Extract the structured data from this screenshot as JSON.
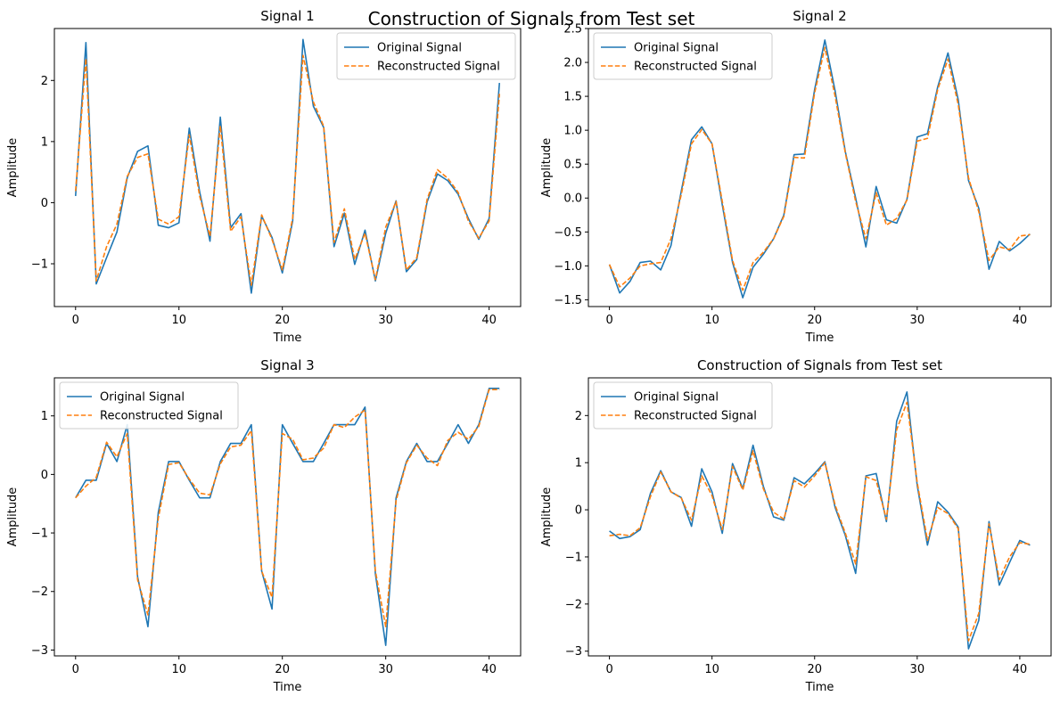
{
  "suptitle": "Construction of Signals from Test set",
  "colors": {
    "original": "#1f77b4",
    "reconstructed": "#ff7f0e"
  },
  "chart_data": [
    {
      "type": "line",
      "title": "Signal 1",
      "xlabel": "Time",
      "ylabel": "Amplitude",
      "xlim": [
        -2.05,
        43.05
      ],
      "ylim": [
        -1.7,
        2.85
      ],
      "xticks": [
        0,
        10,
        20,
        30,
        40
      ],
      "yticks": [
        -1,
        0,
        1,
        2
      ],
      "ytick_labels": [
        "−1",
        "0",
        "1",
        "2"
      ],
      "legend": "top-right",
      "x": [
        0,
        1,
        2,
        3,
        4,
        5,
        6,
        7,
        8,
        9,
        10,
        11,
        12,
        13,
        14,
        15,
        16,
        17,
        18,
        19,
        20,
        21,
        22,
        23,
        24,
        25,
        26,
        27,
        28,
        29,
        30,
        31,
        32,
        33,
        34,
        35,
        36,
        37,
        38,
        39,
        40,
        41
      ],
      "series": [
        {
          "name": "Original Signal",
          "style": "solid",
          "values": [
            0.11,
            2.62,
            -1.33,
            -0.9,
            -0.48,
            0.41,
            0.84,
            0.93,
            -0.37,
            -0.41,
            -0.33,
            1.22,
            0.18,
            -0.63,
            1.4,
            -0.41,
            -0.18,
            -1.48,
            -0.22,
            -0.57,
            -1.15,
            -0.3,
            2.67,
            1.58,
            1.23,
            -0.72,
            -0.17,
            -1.01,
            -0.45,
            -1.28,
            -0.5,
            0.03,
            -1.13,
            -0.93,
            0.01,
            0.47,
            0.36,
            0.14,
            -0.26,
            -0.6,
            -0.26,
            1.96
          ]
        },
        {
          "name": "Reconstructed Signal",
          "style": "dashed",
          "values": [
            0.19,
            2.36,
            -1.28,
            -0.72,
            -0.35,
            0.43,
            0.74,
            0.8,
            -0.27,
            -0.35,
            -0.23,
            1.11,
            0.11,
            -0.55,
            1.26,
            -0.47,
            -0.23,
            -1.35,
            -0.2,
            -0.6,
            -1.1,
            -0.25,
            2.41,
            1.65,
            1.25,
            -0.65,
            -0.1,
            -0.93,
            -0.5,
            -1.26,
            -0.4,
            0.02,
            -1.1,
            -0.9,
            0.05,
            0.54,
            0.4,
            0.17,
            -0.3,
            -0.58,
            -0.3,
            1.78
          ]
        }
      ]
    },
    {
      "type": "line",
      "title": "Signal 2",
      "xlabel": "Time",
      "ylabel": "Amplitude",
      "xlim": [
        -2.05,
        43.05
      ],
      "ylim": [
        -1.6,
        2.5
      ],
      "xticks": [
        0,
        10,
        20,
        30,
        40
      ],
      "yticks": [
        -1.5,
        -1.0,
        -0.5,
        0.0,
        0.5,
        1.0,
        1.5,
        2.0,
        2.5
      ],
      "ytick_labels": [
        "−1.5",
        "−1.0",
        "−0.5",
        "0.0",
        "0.5",
        "1.0",
        "1.5",
        "2.0",
        "2.5"
      ],
      "legend": "top-left",
      "x": [
        0,
        1,
        2,
        3,
        4,
        5,
        6,
        7,
        8,
        9,
        10,
        11,
        12,
        13,
        14,
        15,
        16,
        17,
        18,
        19,
        20,
        21,
        22,
        23,
        24,
        25,
        26,
        27,
        28,
        29,
        30,
        31,
        32,
        33,
        34,
        35,
        36,
        37,
        38,
        39,
        40,
        41
      ],
      "series": [
        {
          "name": "Original Signal",
          "style": "solid",
          "values": [
            -0.98,
            -1.4,
            -1.23,
            -0.95,
            -0.93,
            -1.06,
            -0.7,
            0.1,
            0.86,
            1.05,
            0.8,
            -0.1,
            -0.95,
            -1.47,
            -1.02,
            -0.83,
            -0.6,
            -0.25,
            0.64,
            0.65,
            1.6,
            2.33,
            1.58,
            0.68,
            0.0,
            -0.72,
            0.17,
            -0.32,
            -0.37,
            -0.02,
            0.9,
            0.95,
            1.64,
            2.14,
            1.45,
            0.26,
            -0.15,
            -1.05,
            -0.64,
            -0.78,
            -0.67,
            -0.53
          ]
        },
        {
          "name": "Reconstructed Signal",
          "style": "dashed",
          "values": [
            -0.98,
            -1.31,
            -1.18,
            -1.0,
            -0.97,
            -0.95,
            -0.6,
            0.05,
            0.8,
            1.01,
            0.8,
            -0.05,
            -0.92,
            -1.36,
            -0.95,
            -0.8,
            -0.6,
            -0.27,
            0.6,
            0.59,
            1.55,
            2.22,
            1.5,
            0.66,
            -0.05,
            -0.6,
            0.08,
            -0.4,
            -0.3,
            -0.03,
            0.84,
            0.88,
            1.6,
            2.05,
            1.38,
            0.3,
            -0.2,
            -0.92,
            -0.72,
            -0.76,
            -0.56,
            -0.54
          ]
        }
      ]
    },
    {
      "type": "line",
      "title": "Signal 3",
      "xlabel": "Time",
      "ylabel": "Amplitude",
      "xlim": [
        -2.05,
        43.05
      ],
      "ylim": [
        -3.1,
        1.65
      ],
      "xticks": [
        0,
        10,
        20,
        30,
        40
      ],
      "yticks": [
        -3,
        -2,
        -1,
        0,
        1
      ],
      "ytick_labels": [
        "−3",
        "−2",
        "−1",
        "0",
        "1"
      ],
      "legend": "top-left",
      "x": [
        0,
        1,
        2,
        3,
        4,
        5,
        6,
        7,
        8,
        9,
        10,
        11,
        12,
        13,
        14,
        15,
        16,
        17,
        18,
        19,
        20,
        21,
        22,
        23,
        24,
        25,
        26,
        27,
        28,
        29,
        30,
        31,
        32,
        33,
        34,
        35,
        36,
        37,
        38,
        39,
        40,
        41
      ],
      "series": [
        {
          "name": "Original Signal",
          "style": "solid",
          "values": [
            -0.4,
            -0.1,
            -0.1,
            0.53,
            0.22,
            0.85,
            -1.75,
            -2.6,
            -0.65,
            0.22,
            0.22,
            -0.1,
            -0.4,
            -0.4,
            0.22,
            0.53,
            0.53,
            0.85,
            -1.65,
            -2.3,
            0.85,
            0.53,
            0.22,
            0.22,
            0.53,
            0.85,
            0.85,
            0.85,
            1.15,
            -1.7,
            -2.92,
            -0.4,
            0.22,
            0.53,
            0.22,
            0.22,
            0.53,
            0.85,
            0.53,
            0.85,
            1.47,
            1.47
          ]
        },
        {
          "name": "Reconstructed Signal",
          "style": "dashed",
          "values": [
            -0.4,
            -0.2,
            -0.05,
            0.55,
            0.3,
            0.7,
            -1.8,
            -2.4,
            -0.75,
            0.17,
            0.2,
            -0.08,
            -0.32,
            -0.35,
            0.18,
            0.47,
            0.5,
            0.75,
            -1.65,
            -2.1,
            0.7,
            0.6,
            0.25,
            0.28,
            0.45,
            0.85,
            0.8,
            0.98,
            1.1,
            -1.65,
            -2.6,
            -0.45,
            0.2,
            0.5,
            0.28,
            0.15,
            0.58,
            0.72,
            0.6,
            0.82,
            1.45,
            1.45
          ]
        }
      ]
    },
    {
      "type": "line",
      "title": "Construction of Signals from Test set",
      "xlabel": "Time",
      "ylabel": "Amplitude",
      "xlim": [
        -2.05,
        43.05
      ],
      "ylim": [
        -3.1,
        2.8
      ],
      "xticks": [
        0,
        10,
        20,
        30,
        40
      ],
      "yticks": [
        -3,
        -2,
        -1,
        0,
        1,
        2
      ],
      "ytick_labels": [
        "−3",
        "−2",
        "−1",
        "0",
        "1",
        "2"
      ],
      "legend": "top-left",
      "x": [
        0,
        1,
        2,
        3,
        4,
        5,
        6,
        7,
        8,
        9,
        10,
        11,
        12,
        13,
        14,
        15,
        16,
        17,
        18,
        19,
        20,
        21,
        22,
        23,
        24,
        25,
        26,
        27,
        28,
        29,
        30,
        31,
        32,
        33,
        34,
        35,
        36,
        37,
        38,
        39,
        40,
        41
      ],
      "series": [
        {
          "name": "Original Signal",
          "style": "solid",
          "values": [
            -0.45,
            -0.61,
            -0.57,
            -0.42,
            0.35,
            0.83,
            0.38,
            0.26,
            -0.35,
            0.87,
            0.38,
            -0.5,
            0.98,
            0.45,
            1.37,
            0.5,
            -0.15,
            -0.22,
            0.68,
            0.55,
            0.77,
            1.02,
            0.05,
            -0.55,
            -1.35,
            0.72,
            0.77,
            -0.25,
            1.88,
            2.5,
            0.52,
            -0.75,
            0.17,
            -0.05,
            -0.37,
            -2.95,
            -2.35,
            -0.25,
            -1.6,
            -1.12,
            -0.65,
            -0.75
          ]
        },
        {
          "name": "Reconstructed Signal",
          "style": "dashed",
          "values": [
            -0.55,
            -0.52,
            -0.55,
            -0.38,
            0.28,
            0.8,
            0.38,
            0.25,
            -0.22,
            0.72,
            0.3,
            -0.42,
            0.92,
            0.42,
            1.25,
            0.45,
            -0.05,
            -0.2,
            0.62,
            0.48,
            0.72,
            1.0,
            0.1,
            -0.5,
            -1.15,
            0.7,
            0.62,
            -0.2,
            1.7,
            2.28,
            0.58,
            -0.65,
            0.05,
            -0.08,
            -0.4,
            -2.78,
            -2.2,
            -0.3,
            -1.48,
            -1.0,
            -0.7,
            -0.73
          ]
        }
      ]
    }
  ]
}
